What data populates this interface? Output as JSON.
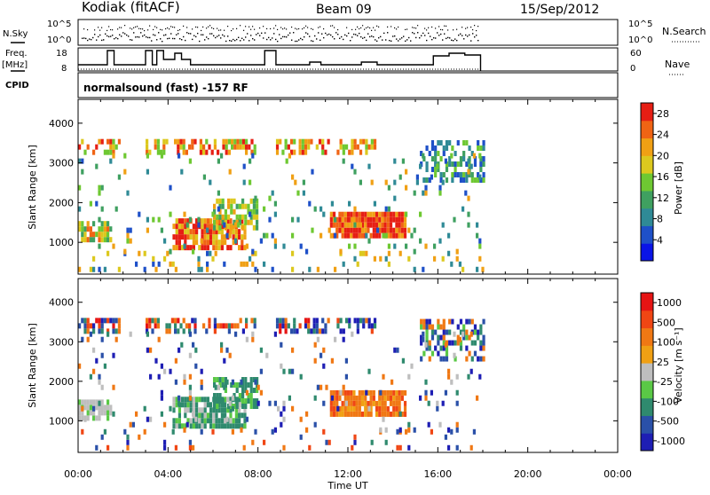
{
  "header": {
    "station": "Kodiak (fitACF)",
    "beam": "Beam 09",
    "date": "15/Sep/2012"
  },
  "left_labels": {
    "nsky": "N.Sky",
    "freq": "Freq.",
    "freq_unit": "[MHz]",
    "cpid": "CPID"
  },
  "right_labels": {
    "nsearch": "N.Search",
    "nave": "Nave"
  },
  "cpid_text": "normalsound (fast) -157 RF",
  "noise_panel": {
    "left_ticks": [
      "10^5",
      "10^0"
    ],
    "right_ticks": [
      "10^5",
      "10^0"
    ]
  },
  "freq_panel": {
    "left_ticks": [
      "18",
      "8"
    ],
    "right_ticks": [
      "60",
      "0"
    ]
  },
  "chart_data": [
    {
      "type": "heatmap",
      "name": "power-panel",
      "xlabel": "Time UT",
      "ylabel": "Slant Range [km]",
      "x_ticks": [
        "00:00",
        "04:00",
        "08:00",
        "12:00",
        "16:00",
        "20:00",
        "00:00"
      ],
      "x_range_hours": [
        0,
        24
      ],
      "y_ticks": [
        1000,
        2000,
        3000,
        4000
      ],
      "ylim": [
        200,
        4600
      ],
      "colorbar": {
        "label": "Power [dB]",
        "ticks": [
          4,
          8,
          12,
          16,
          20,
          24,
          28
        ],
        "range": [
          0,
          30
        ],
        "colors": [
          "#0a14e6",
          "#1e50c8",
          "#2f8a96",
          "#3fa060",
          "#6ec832",
          "#dcc81e",
          "#f0a014",
          "#f06414",
          "#e61e14"
        ]
      }
    },
    {
      "type": "heatmap",
      "name": "velocity-panel",
      "xlabel": "Time UT",
      "ylabel": "Slant Range [km]",
      "x_ticks": [
        "00:00",
        "04:00",
        "08:00",
        "12:00",
        "16:00",
        "20:00",
        "00:00"
      ],
      "x_range_hours": [
        0,
        24
      ],
      "y_ticks": [
        1000,
        2000,
        3000,
        4000
      ],
      "ylim": [
        200,
        4600
      ],
      "colorbar": {
        "label": "Velocity [m s⁻¹]",
        "ticks": [
          "1000",
          "500",
          "100",
          "25",
          "-25",
          "-100",
          "-500",
          "-1000"
        ],
        "colors": [
          "#1e1eb4",
          "#2a50a8",
          "#2f8a6e",
          "#5ac846",
          "#bebebe",
          "#f0a014",
          "#f07814",
          "#f04614",
          "#e61414"
        ]
      }
    }
  ]
}
